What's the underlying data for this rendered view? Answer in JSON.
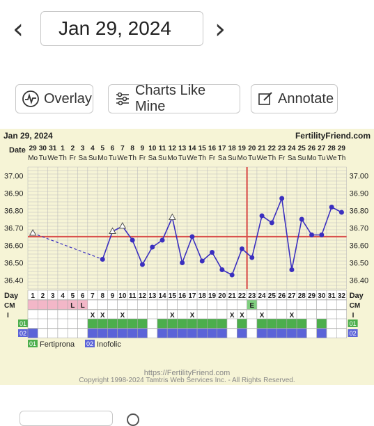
{
  "nav": {
    "prev": "‹",
    "next": "›",
    "date": "Jan 29, 2024"
  },
  "buttons": [
    {
      "label": "Overlay",
      "icon": "pulse-icon"
    },
    {
      "label": "Charts Like Mine",
      "icon": "sliders-icon"
    },
    {
      "label": "Annotate",
      "icon": "edit-icon"
    }
  ],
  "chart": {
    "header_date": "Jan 29, 2024",
    "brand": "FertilityFriend.com",
    "date_label": "Date",
    "day_label": "Day",
    "cm_label": "CM",
    "i_label": "I",
    "med1_code": "01",
    "med2_code": "02",
    "legend": [
      {
        "code": "01",
        "name": "Fertiprona"
      },
      {
        "code": "02",
        "name": "Inofolic"
      }
    ],
    "footer_url": "https://FertilityFriend.com",
    "footer_copy": "Copyright 1998-2024 Tamtris Web Services Inc. - All Rights Reserved.",
    "colors": {
      "bg": "#f6f4d6",
      "grid": "#bdbdbd",
      "line": "#3a2fbf",
      "coverline": "#d9534f",
      "med1": "#4cae4c",
      "med2": "#5b63d8",
      "cm_pink": "#f3b7c8",
      "cm_green": "#7fcf7f"
    }
  },
  "chart_data": {
    "type": "line",
    "title": "Jan 29, 2024",
    "ylabel": "",
    "xlabel": "Day",
    "ylim": [
      36.35,
      37.05
    ],
    "yticks": [
      "37.00",
      "36.90",
      "36.80",
      "36.70",
      "36.60",
      "36.50",
      "36.40"
    ],
    "dates": [
      "29",
      "30",
      "31",
      "1",
      "2",
      "3",
      "4",
      "5",
      "6",
      "7",
      "8",
      "9",
      "10",
      "11",
      "12",
      "13",
      "14",
      "15",
      "16",
      "17",
      "18",
      "19",
      "20",
      "21",
      "22",
      "23",
      "24",
      "25",
      "26",
      "27",
      "28",
      "29"
    ],
    "weekdays": [
      "Mo",
      "Tu",
      "We",
      "Th",
      "Fr",
      "Sa",
      "Su",
      "Mo",
      "Tu",
      "We",
      "Th",
      "Fr",
      "Sa",
      "Su",
      "Mo",
      "Tu",
      "We",
      "Th",
      "Fr",
      "Sa",
      "Su",
      "Mo",
      "Tu",
      "We",
      "Th",
      "Fr",
      "Sa",
      "Su",
      "Mo",
      "Tu",
      "We",
      "Th"
    ],
    "days": [
      1,
      2,
      3,
      4,
      5,
      6,
      7,
      8,
      9,
      10,
      11,
      12,
      13,
      14,
      15,
      16,
      17,
      18,
      19,
      20,
      21,
      22,
      23,
      24,
      25,
      26,
      27,
      28,
      29,
      30,
      31,
      32
    ],
    "temps": [
      36.67,
      null,
      null,
      null,
      null,
      null,
      null,
      36.52,
      36.68,
      36.71,
      36.63,
      36.49,
      36.59,
      36.63,
      36.76,
      36.5,
      36.65,
      36.51,
      36.56,
      36.46,
      36.43,
      36.58,
      36.53,
      36.77,
      36.73,
      36.87,
      36.46,
      36.75,
      36.66,
      36.66,
      36.82,
      36.79
    ],
    "open_markers": [
      1,
      9,
      10,
      15
    ],
    "coverline": 36.65,
    "ovulation_day": 23,
    "cm": {
      "5": "L",
      "6": "L",
      "23": "E"
    },
    "cm_pink_days": [
      1,
      2,
      3,
      4,
      5,
      6
    ],
    "intercourse_days": [
      7,
      8,
      10,
      15,
      17,
      21,
      22,
      24,
      27
    ],
    "med1_days": [
      7,
      8,
      9,
      10,
      11,
      12,
      14,
      15,
      16,
      17,
      18,
      19,
      20,
      22,
      24,
      25,
      26,
      27,
      28,
      30
    ],
    "med2_days": [
      1,
      7,
      8,
      9,
      10,
      11,
      12,
      14,
      15,
      16,
      17,
      18,
      19,
      20,
      22,
      24,
      25,
      26,
      27,
      28,
      30
    ],
    "coverline_value": 36.65
  }
}
